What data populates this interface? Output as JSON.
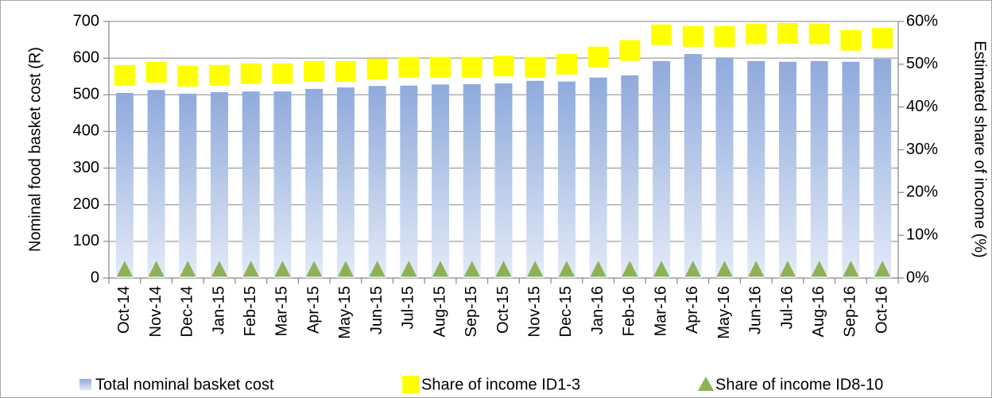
{
  "chart_data": {
    "type": "bar-markers",
    "categories": [
      "Oct-14",
      "Nov-14",
      "Dec-14",
      "Jan-15",
      "Feb-15",
      "Mar-15",
      "Apr-15",
      "May-15",
      "Jun-15",
      "Jul-15",
      "Aug-15",
      "Sep-15",
      "Oct-15",
      "Nov-15",
      "Dec-15",
      "Jan-16",
      "Feb-16",
      "Mar-16",
      "Apr-16",
      "May-16",
      "Jun-16",
      "Jul-16",
      "Aug-16",
      "Sep-16",
      "Oct-16"
    ],
    "y_label": "Nominal food basket cost (R)",
    "y2_label": "Estimated share of income (%)",
    "ylim": [
      0,
      700
    ],
    "yticks": [
      0,
      100,
      200,
      300,
      400,
      500,
      600,
      700
    ],
    "y2lim": [
      0,
      60
    ],
    "y2ticks": [
      {
        "value": 0,
        "label": "0%"
      },
      {
        "value": 10,
        "label": "10%"
      },
      {
        "value": 20,
        "label": "20%"
      },
      {
        "value": 30,
        "label": "30%"
      },
      {
        "value": 40,
        "label": "40%"
      },
      {
        "value": 50,
        "label": "50%"
      },
      {
        "value": 60,
        "label": "60%"
      }
    ],
    "grid": true,
    "legend": "bottom",
    "series": [
      {
        "name": "Total nominal basket cost",
        "color": "#8faadc",
        "marker": "bar",
        "values": [
          505,
          513,
          503,
          507,
          509,
          509,
          516,
          520,
          524,
          525,
          528,
          529,
          531,
          538,
          536,
          547,
          553,
          592,
          611,
          602,
          592,
          590,
          592,
          590,
          598
        ]
      },
      {
        "name": "Share of income ID1-3",
        "color": "#ffff00",
        "marker": "square",
        "axis": "y2",
        "values": [
          47.4,
          48.1,
          47.2,
          47.4,
          47.8,
          47.8,
          48.3,
          48.3,
          48.9,
          49.3,
          49.3,
          49.3,
          49.6,
          49.3,
          50,
          51.7,
          53.2,
          56.9,
          56.5,
          56.5,
          57.1,
          57.2,
          57.1,
          55.6,
          56.1
        ]
      },
      {
        "name": "Share of income ID8-10",
        "color": "#8db255",
        "marker": "triangle",
        "axis": "y2",
        "values": [
          2,
          2,
          2,
          2,
          2,
          2,
          2,
          2,
          2,
          2,
          2,
          2,
          2,
          2,
          2,
          2,
          2,
          2,
          2,
          2,
          2,
          2,
          2,
          2,
          2
        ]
      }
    ]
  }
}
